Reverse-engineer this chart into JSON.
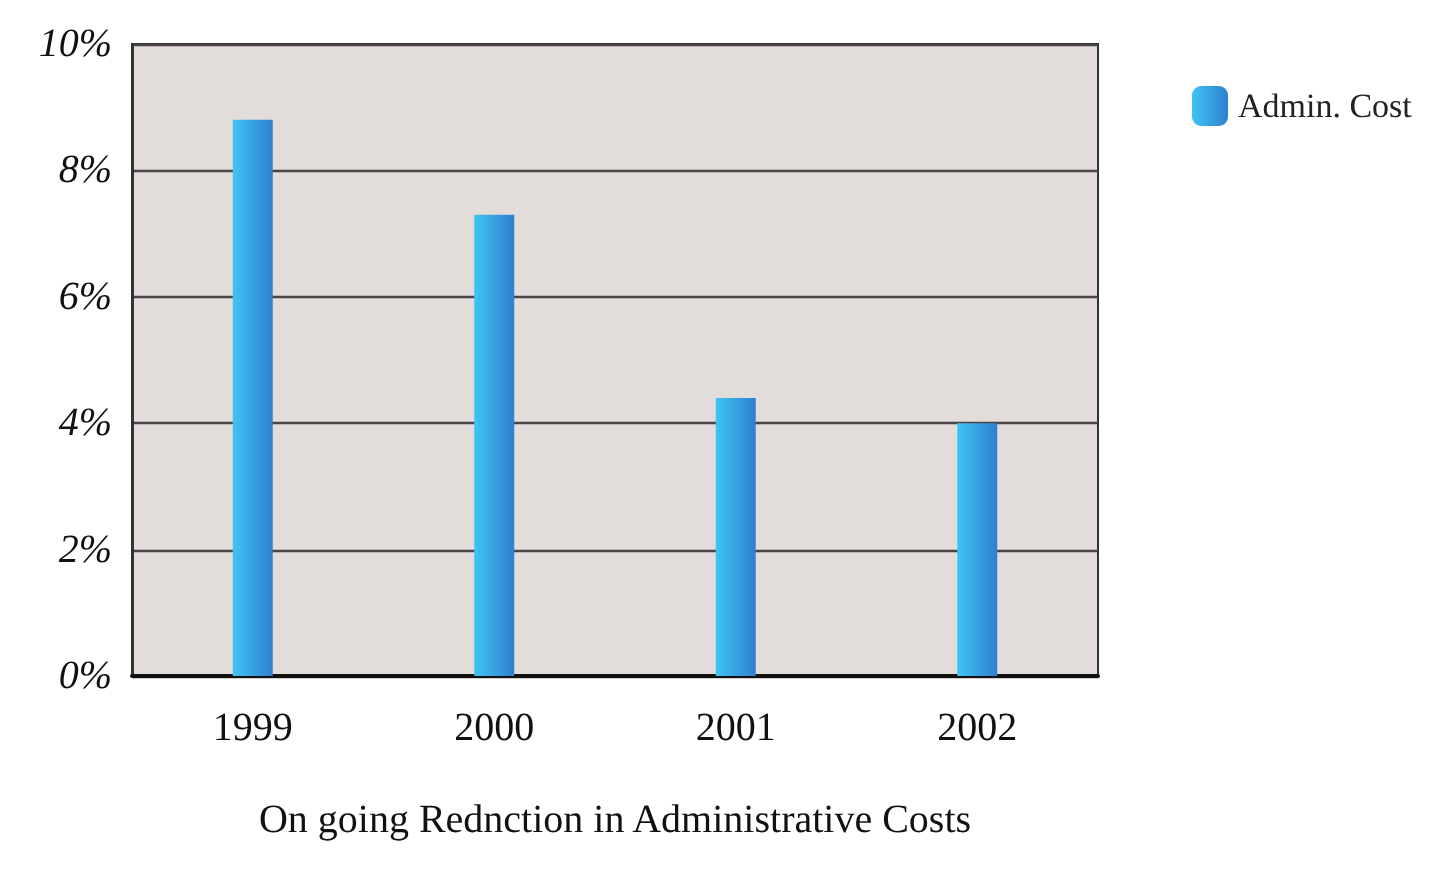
{
  "chart_data": {
    "type": "bar",
    "xlabel": "On going Rednction in Administrative Costs",
    "categories": [
      "1999",
      "2000",
      "2001",
      "2002"
    ],
    "series": [
      {
        "name": "Admin. Cost",
        "color": "#2f7fd0",
        "values": [
          8.8,
          7.3,
          4.4,
          4.0
        ]
      }
    ],
    "ylim": [
      0,
      10
    ],
    "yticks": [
      {
        "value": 0,
        "label": "0%"
      },
      {
        "value": 2,
        "label": "2%"
      },
      {
        "value": 4,
        "label": "4%"
      },
      {
        "value": 6,
        "label": "6%"
      },
      {
        "value": 8,
        "label": "8%"
      },
      {
        "value": 10,
        "label": "10%"
      }
    ],
    "grid": "y",
    "legend": "top right"
  }
}
